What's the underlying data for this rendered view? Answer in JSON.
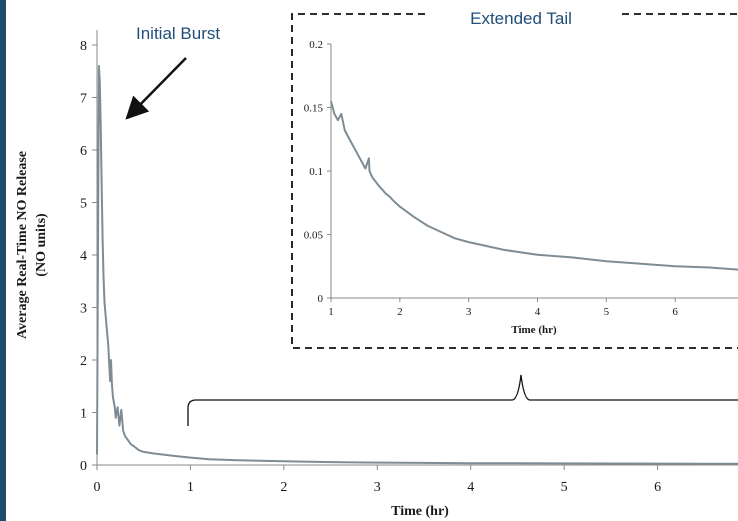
{
  "chart_data": [
    {
      "id": "main",
      "type": "line",
      "title": "",
      "xlabel": "Time (hr)",
      "ylabel_line1": "Average Real-Time NO Release",
      "ylabel_line2": "(NO units)",
      "xlim": [
        0,
        7
      ],
      "ylim": [
        0,
        8
      ],
      "xticks": [
        0,
        1,
        2,
        3,
        4,
        5,
        6
      ],
      "yticks": [
        0,
        1,
        2,
        3,
        4,
        5,
        6,
        7,
        8
      ],
      "grid": false,
      "line_color": "#7f8c94",
      "series": [
        {
          "x": [
            0,
            0.02,
            0.03,
            0.04,
            0.05,
            0.06,
            0.07,
            0.08,
            0.09,
            0.1,
            0.12,
            0.14,
            0.15,
            0.16,
            0.17,
            0.19,
            0.2,
            0.22,
            0.24,
            0.26,
            0.28,
            0.3,
            0.33,
            0.36,
            0.4,
            0.45,
            0.5,
            0.6,
            0.7,
            0.8,
            1.0,
            1.2,
            1.5,
            2.0,
            2.5,
            3.0,
            3.5,
            4.0,
            4.5,
            5.0,
            5.5,
            6.0,
            6.5,
            7.0
          ],
          "y": [
            0.2,
            7.6,
            7.3,
            6.5,
            5.3,
            4.3,
            3.6,
            3.1,
            2.9,
            2.7,
            2.3,
            1.6,
            2.0,
            1.55,
            1.3,
            1.1,
            0.9,
            1.1,
            0.75,
            1.05,
            0.65,
            0.55,
            0.48,
            0.4,
            0.35,
            0.28,
            0.25,
            0.22,
            0.2,
            0.18,
            0.14,
            0.11,
            0.09,
            0.07,
            0.055,
            0.045,
            0.04,
            0.035,
            0.032,
            0.03,
            0.028,
            0.026,
            0.024,
            0.022
          ]
        }
      ]
    },
    {
      "id": "inset",
      "type": "line",
      "title": "Extended Tail",
      "xlabel": "Time (hr)",
      "ylabel": "",
      "xlim": [
        1,
        7
      ],
      "ylim": [
        0,
        0.2
      ],
      "xticks": [
        1,
        2,
        3,
        4,
        5,
        6
      ],
      "yticks": [
        0,
        0.05,
        0.1,
        0.15,
        0.2
      ],
      "ytick_labels": [
        "0",
        "0.05",
        "0.1",
        "0.15",
        "0.2"
      ],
      "grid": false,
      "line_color": "#7f8c94",
      "series": [
        {
          "x": [
            1.0,
            1.05,
            1.1,
            1.15,
            1.2,
            1.3,
            1.4,
            1.5,
            1.55,
            1.56,
            1.6,
            1.7,
            1.8,
            1.85,
            1.9,
            2.0,
            2.2,
            2.4,
            2.6,
            2.8,
            3.0,
            3.25,
            3.5,
            3.75,
            4.0,
            4.5,
            5.0,
            5.5,
            6.0,
            6.5,
            7.0
          ],
          "y": [
            0.155,
            0.145,
            0.14,
            0.145,
            0.132,
            0.122,
            0.112,
            0.102,
            0.11,
            0.1,
            0.095,
            0.088,
            0.082,
            0.08,
            0.077,
            0.072,
            0.064,
            0.057,
            0.052,
            0.047,
            0.044,
            0.041,
            0.038,
            0.036,
            0.034,
            0.032,
            0.029,
            0.027,
            0.025,
            0.024,
            0.022
          ]
        }
      ]
    }
  ],
  "annotations": {
    "initial_burst": "Initial Burst",
    "extended_tail": "Extended Tail"
  }
}
